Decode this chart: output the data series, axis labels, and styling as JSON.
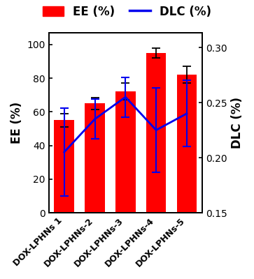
{
  "categories": [
    "DOX-LPHNs 1",
    "DOX-LPHNs-2",
    "DOX-LPHNs-3",
    "DOX-LPHNs-4",
    "DOX-LPHNs-5"
  ],
  "ee_values": [
    55,
    65,
    72,
    95,
    82
  ],
  "ee_errors": [
    4,
    3.5,
    5,
    3,
    5
  ],
  "dlc_values": [
    0.205,
    0.235,
    0.255,
    0.225,
    0.24
  ],
  "dlc_errors": [
    0.04,
    0.018,
    0.018,
    0.038,
    0.03
  ],
  "bar_color": "#FF0000",
  "line_color": "#0000EE",
  "ee_ylabel": "EE (%)",
  "dlc_ylabel": "DLC (%)",
  "ee_ylim": [
    0,
    107
  ],
  "ee_yticks": [
    0,
    20,
    40,
    60,
    80,
    100
  ],
  "dlc_ylim": [
    0.15,
    0.3133
  ],
  "dlc_yticks": [
    0.15,
    0.2,
    0.25,
    0.3
  ],
  "legend_ee": "EE (%)",
  "legend_dlc": "DLC (%)",
  "background_color": "#ffffff"
}
